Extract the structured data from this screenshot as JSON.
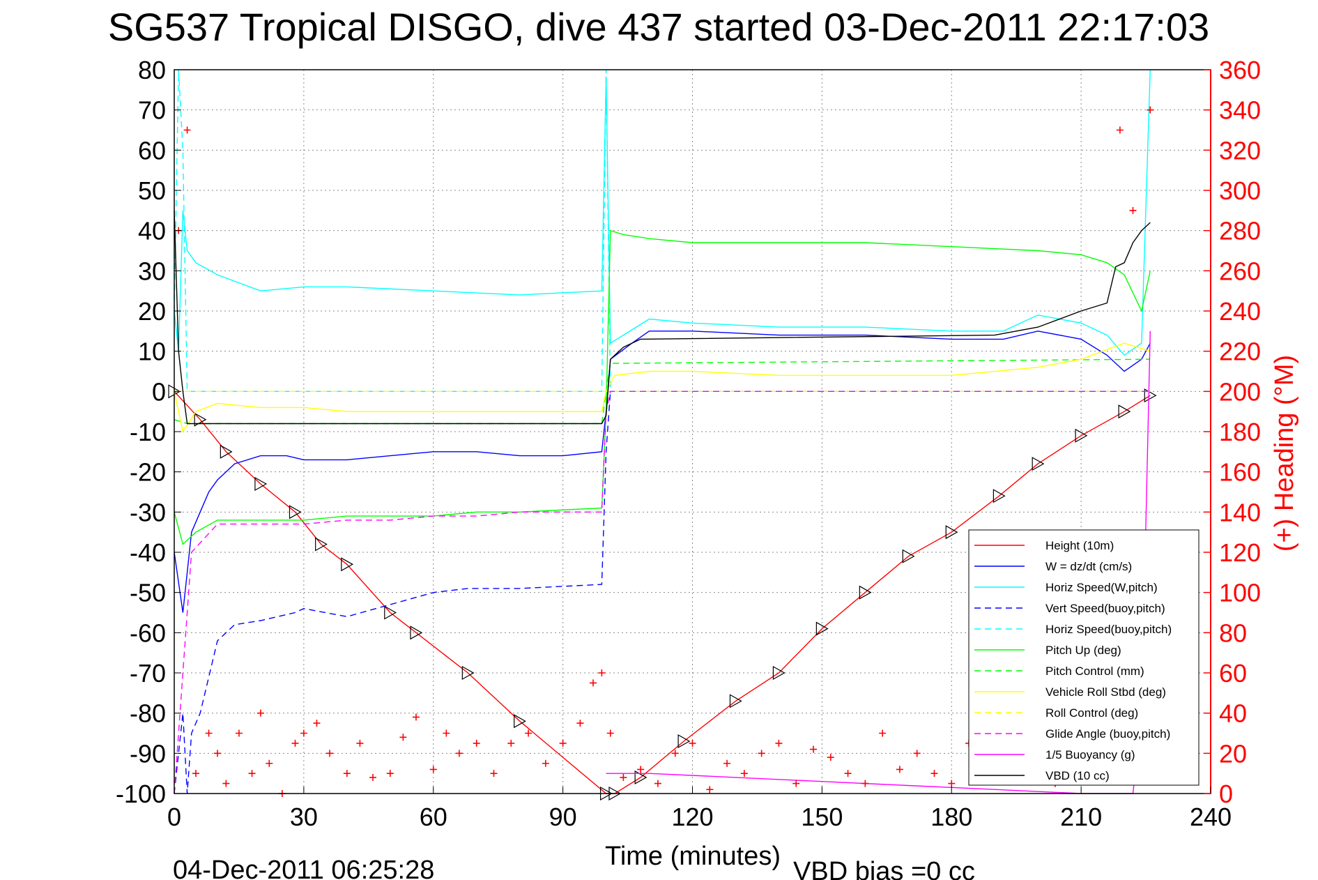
{
  "title": "SG537 Tropical DISGO, dive 437 started 03-Dec-2011 22:17:03",
  "footer_left": "04-Dec-2011 06:25:28",
  "footer_right": "VBD bias =0 cc",
  "chart_data": {
    "type": "line",
    "title": "SG537 Tropical DISGO, dive 437 started 03-Dec-2011 22:17:03",
    "xlabel": "Time (minutes)",
    "ylabel": "",
    "ylabel_right": "(+) Heading (°M)",
    "xlim": [
      0,
      240
    ],
    "ylim": [
      -100,
      80
    ],
    "ylim_right": [
      0,
      360
    ],
    "xticks": [
      0,
      30,
      60,
      90,
      120,
      150,
      180,
      210,
      240
    ],
    "yticks": [
      80,
      70,
      60,
      50,
      40,
      30,
      20,
      10,
      0,
      -10,
      -20,
      -30,
      -40,
      -50,
      -60,
      -70,
      -80,
      -90,
      -100
    ],
    "yticks_right": [
      360,
      340,
      320,
      300,
      280,
      260,
      240,
      220,
      200,
      180,
      160,
      140,
      120,
      100,
      80,
      60,
      40,
      20,
      0
    ],
    "grid": true,
    "legend_position": "bottom-right",
    "colors": {
      "height": "#ff0000",
      "w": "#0000ff",
      "horiz_w": "#00ffff",
      "vert_buoy": "#0000ff",
      "horiz_buoy": "#00ffff",
      "pitch": "#00ff00",
      "pitch_ctrl": "#00ff00",
      "roll": "#ffff00",
      "roll_ctrl": "#ffff00",
      "glide": "#ff00ff",
      "buoyancy": "#ff00ff",
      "vbd": "#000000",
      "heading": "#ff0000"
    },
    "series": [
      {
        "name": "Height (10m)",
        "style": "solid",
        "color": "#ff0000",
        "x": [
          0,
          6,
          12,
          20,
          28,
          34,
          40,
          50,
          56,
          68,
          80,
          100,
          102,
          108,
          118,
          130,
          140,
          150,
          160,
          170,
          180,
          191,
          200,
          210,
          220,
          226
        ],
        "y": [
          0,
          -7,
          -15,
          -23,
          -30,
          -38,
          -43,
          -55,
          -60,
          -70,
          -82,
          -100,
          -100,
          -96,
          -87,
          -77,
          -70,
          -59,
          -50,
          -41,
          -35,
          -26,
          -18,
          -11,
          -5,
          -1
        ]
      },
      {
        "name": "W = dz/dt (cm/s)",
        "style": "solid",
        "color": "#0000ff",
        "x": [
          0,
          2,
          4,
          6,
          8,
          10,
          14,
          20,
          26,
          30,
          40,
          50,
          60,
          70,
          80,
          90,
          99,
          100,
          101,
          106,
          110,
          120,
          140,
          160,
          180,
          192,
          200,
          210,
          216,
          220,
          224,
          226
        ],
        "y": [
          -40,
          -55,
          -35,
          -30,
          -25,
          -22,
          -18,
          -16,
          -16,
          -17,
          -17,
          -16,
          -15,
          -15,
          -16,
          -16,
          -15,
          -5,
          8,
          12,
          15,
          15,
          14,
          14,
          13,
          13,
          15,
          13,
          9,
          5,
          8,
          12
        ]
      },
      {
        "name": "Horiz Speed(W,pitch)",
        "style": "solid",
        "color": "#00ffff",
        "x": [
          0,
          1,
          2,
          3,
          5,
          10,
          20,
          30,
          40,
          60,
          80,
          99,
          100,
          101,
          104,
          110,
          120,
          140,
          160,
          180,
          192,
          200,
          210,
          216,
          220,
          224,
          226
        ],
        "y": [
          20,
          10,
          45,
          35,
          32,
          29,
          25,
          26,
          26,
          25,
          24,
          25,
          78,
          12,
          14,
          18,
          17,
          16,
          16,
          15,
          15,
          19,
          17,
          14,
          9,
          12,
          80
        ]
      },
      {
        "name": "Vert Speed(buoy,pitch)",
        "style": "dashed",
        "color": "#0000ff",
        "x": [
          0,
          2,
          3,
          4,
          6,
          10,
          14,
          20,
          28,
          30,
          40,
          50,
          60,
          68,
          80,
          99,
          100,
          101,
          226
        ],
        "y": [
          -100,
          -80,
          -100,
          -85,
          -80,
          -62,
          -58,
          -57,
          -55,
          -54,
          -56,
          -53,
          -50,
          -49,
          -49,
          -48,
          -15,
          0,
          0
        ]
      },
      {
        "name": "Horiz Speed(buoy,pitch)",
        "style": "dashed",
        "color": "#00ffff",
        "x": [
          0,
          1,
          2,
          3,
          99,
          100,
          101,
          226
        ],
        "y": [
          20,
          80,
          60,
          0,
          0,
          80,
          0,
          0
        ]
      },
      {
        "name": "Pitch Up (deg)",
        "style": "solid",
        "color": "#00ff00",
        "x": [
          0,
          2,
          5,
          10,
          20,
          30,
          40,
          50,
          60,
          70,
          80,
          99,
          100,
          101,
          104,
          110,
          120,
          140,
          160,
          180,
          200,
          210,
          216,
          220,
          224,
          226
        ],
        "y": [
          -30,
          -38,
          -35,
          -32,
          -32,
          -32,
          -31,
          -31,
          -31,
          -30,
          -30,
          -29,
          -5,
          40,
          39,
          38,
          37,
          37,
          37,
          36,
          35,
          34,
          32,
          29,
          20,
          30
        ]
      },
      {
        "name": "Pitch Control (mm)",
        "style": "dashed",
        "color": "#00ff00",
        "x": [
          0,
          3,
          99,
          100,
          101,
          104,
          226
        ],
        "y": [
          -7,
          -8,
          -8,
          0,
          7,
          7,
          8
        ]
      },
      {
        "name": "Vehicle Roll Stbd (deg)",
        "style": "solid",
        "color": "#ffff00",
        "x": [
          0,
          2,
          5,
          10,
          20,
          30,
          40,
          60,
          80,
          99,
          100,
          102,
          110,
          120,
          140,
          160,
          180,
          200,
          210,
          220,
          226
        ],
        "y": [
          0,
          -10,
          -5,
          -3,
          -4,
          -4,
          -5,
          -5,
          -5,
          -5,
          0,
          4,
          5,
          5,
          4,
          4,
          4,
          6,
          8,
          12,
          10
        ]
      },
      {
        "name": "Roll Control (deg)",
        "style": "dashed",
        "color": "#ffff00",
        "x": [
          0,
          3,
          99,
          100,
          101,
          226
        ],
        "y": [
          0,
          0,
          0,
          0,
          0,
          0
        ]
      },
      {
        "name": "Glide Angle (buoy,pitch)",
        "style": "dashed",
        "color": "#ff00ff",
        "x": [
          0,
          4,
          10,
          20,
          30,
          40,
          50,
          60,
          70,
          80,
          99,
          100,
          101,
          226
        ],
        "y": [
          -100,
          -40,
          -33,
          -33,
          -33,
          -32,
          -32,
          -31,
          -31,
          -30,
          -30,
          -5,
          0,
          0
        ]
      },
      {
        "name": "1/5 Buoyancy (g)",
        "style": "solid",
        "color": "#ff00ff",
        "x": [
          100,
          110,
          130,
          150,
          170,
          190,
          210,
          222,
          224,
          226
        ],
        "y": [
          -95,
          -95,
          -96,
          -97,
          -98,
          -99,
          -100,
          -100,
          -80,
          15
        ]
      },
      {
        "name": "VBD (10 cc)",
        "style": "solid",
        "color": "#000000",
        "x": [
          0,
          1,
          2,
          3,
          99,
          100,
          101,
          104,
          106,
          108,
          190,
          200,
          210,
          216,
          218,
          220,
          222,
          224,
          226
        ],
        "y": [
          45,
          10,
          0,
          -8,
          -8,
          -6,
          8,
          11,
          12,
          13,
          14,
          16,
          20,
          22,
          31,
          32,
          37,
          40,
          42
        ]
      },
      {
        "name": "(+) Heading (°M)",
        "style": "markers",
        "color": "#ff0000",
        "axis": "right",
        "x": [
          1,
          3,
          5,
          8,
          10,
          12,
          15,
          18,
          20,
          22,
          25,
          28,
          30,
          33,
          36,
          40,
          43,
          46,
          50,
          53,
          56,
          60,
          63,
          66,
          70,
          74,
          78,
          82,
          86,
          90,
          94,
          97,
          99,
          101,
          104,
          108,
          112,
          116,
          120,
          124,
          128,
          132,
          136,
          140,
          144,
          148,
          152,
          156,
          160,
          164,
          168,
          172,
          176,
          180,
          184,
          188,
          192,
          196,
          200,
          204,
          208,
          212,
          216,
          219,
          222,
          224,
          226
        ],
        "y": [
          280,
          330,
          10,
          30,
          20,
          5,
          30,
          10,
          40,
          15,
          0,
          25,
          30,
          35,
          20,
          10,
          25,
          8,
          10,
          28,
          38,
          12,
          30,
          20,
          25,
          10,
          25,
          30,
          15,
          25,
          35,
          55,
          60,
          30,
          8,
          12,
          5,
          20,
          25,
          2,
          15,
          10,
          20,
          25,
          5,
          22,
          18,
          10,
          5,
          30,
          12,
          20,
          10,
          5,
          25,
          15,
          8,
          22,
          18,
          5,
          20,
          12,
          25,
          330,
          290,
          20,
          340
        ]
      }
    ]
  }
}
